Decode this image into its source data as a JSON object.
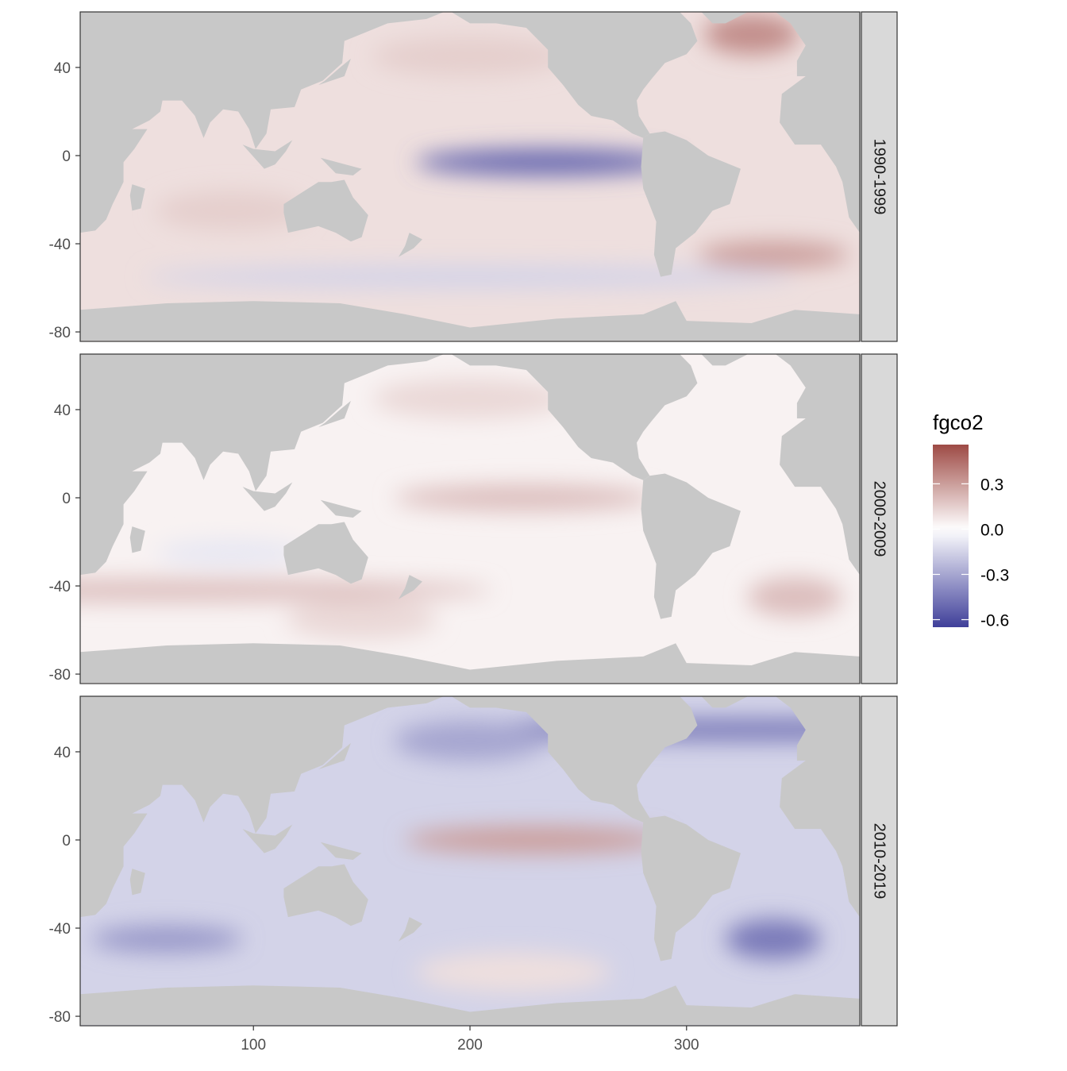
{
  "chart_data": {
    "type": "heatmap",
    "subtype": "faceted world map",
    "facets": [
      "1990-1999",
      "2000-2009",
      "2010-2019"
    ],
    "xlim": [
      20,
      380
    ],
    "ylim": [
      -84,
      65
    ],
    "x_ticks": [
      100,
      200,
      300
    ],
    "y_ticks": [
      40,
      0,
      -40,
      -80
    ],
    "land_color": "#C8C8C8",
    "legend": {
      "title": "fgco2",
      "placement": "right",
      "limits": [
        -0.65,
        0.56
      ],
      "ticks": [
        0.3,
        0.0,
        -0.3,
        -0.6
      ],
      "tick_labels": [
        "0.3",
        "0.0",
        "-0.3",
        "-0.6"
      ],
      "low_color": "#3F3F9A",
      "mid_color": "#FFFFFF",
      "high_color": "#9E4A45"
    },
    "approx_regions": [
      {
        "facet": "1990-1999",
        "background": 0.1,
        "features": [
          {
            "lon": 235,
            "lat": -3,
            "value": -0.5
          },
          {
            "lon": 200,
            "lat": -55,
            "value": -0.15
          },
          {
            "lon": 330,
            "lat": 55,
            "value": 0.35
          },
          {
            "lon": 340,
            "lat": -45,
            "value": 0.3
          },
          {
            "lon": 200,
            "lat": 45,
            "value": 0.15
          },
          {
            "lon": 90,
            "lat": -25,
            "value": 0.15
          }
        ]
      },
      {
        "facet": "2000-2009",
        "background": 0.04,
        "features": [
          {
            "lon": 225,
            "lat": 0,
            "value": 0.2
          },
          {
            "lon": 60,
            "lat": -42,
            "value": 0.2
          },
          {
            "lon": 350,
            "lat": -45,
            "value": 0.2
          },
          {
            "lon": 90,
            "lat": -25,
            "value": -0.08
          },
          {
            "lon": 200,
            "lat": 45,
            "value": 0.12
          },
          {
            "lon": 150,
            "lat": -55,
            "value": 0.12
          }
        ]
      },
      {
        "facet": "2010-2019",
        "background": -0.15,
        "features": [
          {
            "lon": 230,
            "lat": 0,
            "value": 0.3
          },
          {
            "lon": 330,
            "lat": 50,
            "value": -0.45
          },
          {
            "lon": 340,
            "lat": -45,
            "value": -0.45
          },
          {
            "lon": 60,
            "lat": -45,
            "value": -0.35
          },
          {
            "lon": 220,
            "lat": -60,
            "value": 0.1
          },
          {
            "lon": 200,
            "lat": 45,
            "value": -0.3
          }
        ]
      }
    ]
  }
}
